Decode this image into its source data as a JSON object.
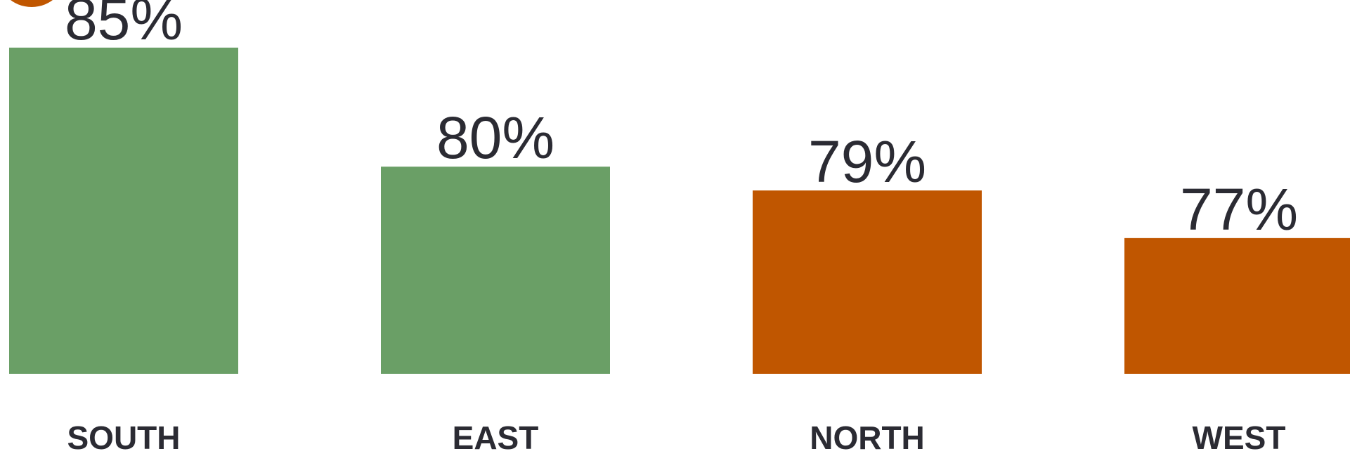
{
  "chart_data": {
    "type": "bar",
    "categories": [
      "SOUTH",
      "EAST",
      "NORTH",
      "WEST"
    ],
    "values": [
      85,
      80,
      79,
      77
    ],
    "value_labels": [
      "85%",
      "80%",
      "79%",
      "77%"
    ],
    "colors": [
      "#6a9f66",
      "#6a9f66",
      "#c05600",
      "#c05600"
    ],
    "ylim": [
      71.3,
      87
    ]
  }
}
